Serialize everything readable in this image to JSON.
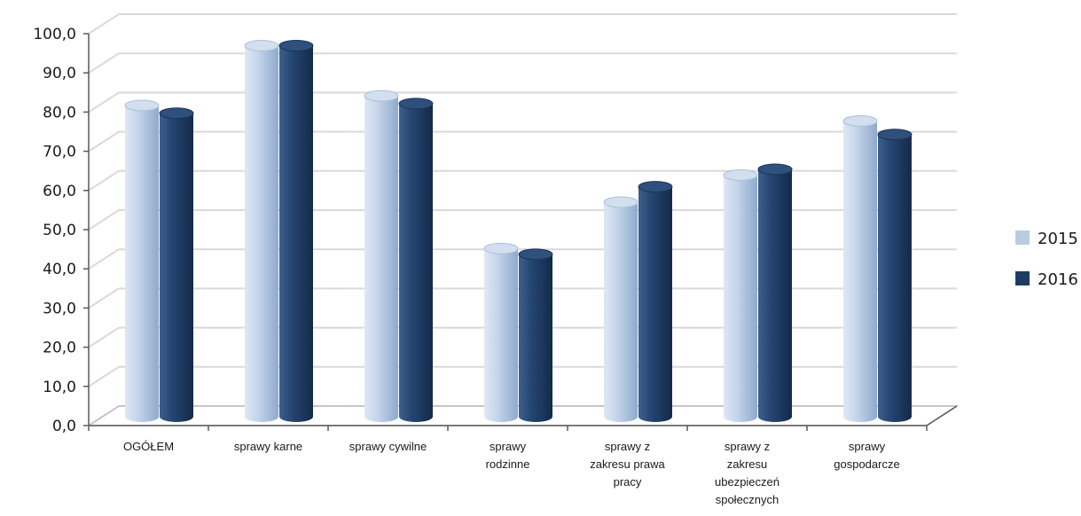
{
  "chart_data": {
    "type": "bar",
    "categories": [
      [
        "OGÓŁEM"
      ],
      [
        "sprawy  karne"
      ],
      [
        "sprawy cywilne"
      ],
      [
        "sprawy",
        "rodzinne"
      ],
      [
        "sprawy z",
        "zakresu prawa",
        "pracy"
      ],
      [
        "sprawy z",
        "zakresu",
        "ubezpieczeń",
        "społecznych"
      ],
      [
        "sprawy",
        "gospodarcze"
      ]
    ],
    "series": [
      {
        "name": "2015",
        "color": "#b8cce4",
        "values": [
          80.5,
          96.0,
          83.0,
          43.5,
          55.5,
          62.5,
          76.5
        ]
      },
      {
        "name": "2016",
        "color": "#1f3b63",
        "values": [
          78.5,
          96.0,
          81.0,
          42.0,
          59.5,
          64.0,
          73.0
        ]
      }
    ],
    "y_ticks": [
      "0,0",
      "10,0",
      "20,0",
      "30,0",
      "40,0",
      "50,0",
      "60,0",
      "70,0",
      "80,0",
      "90,0",
      "100,0"
    ],
    "ylim": [
      0,
      100
    ],
    "title": "",
    "xlabel": "",
    "ylabel": "",
    "grid": true,
    "legend": "right",
    "style": "3d-cylinder"
  }
}
